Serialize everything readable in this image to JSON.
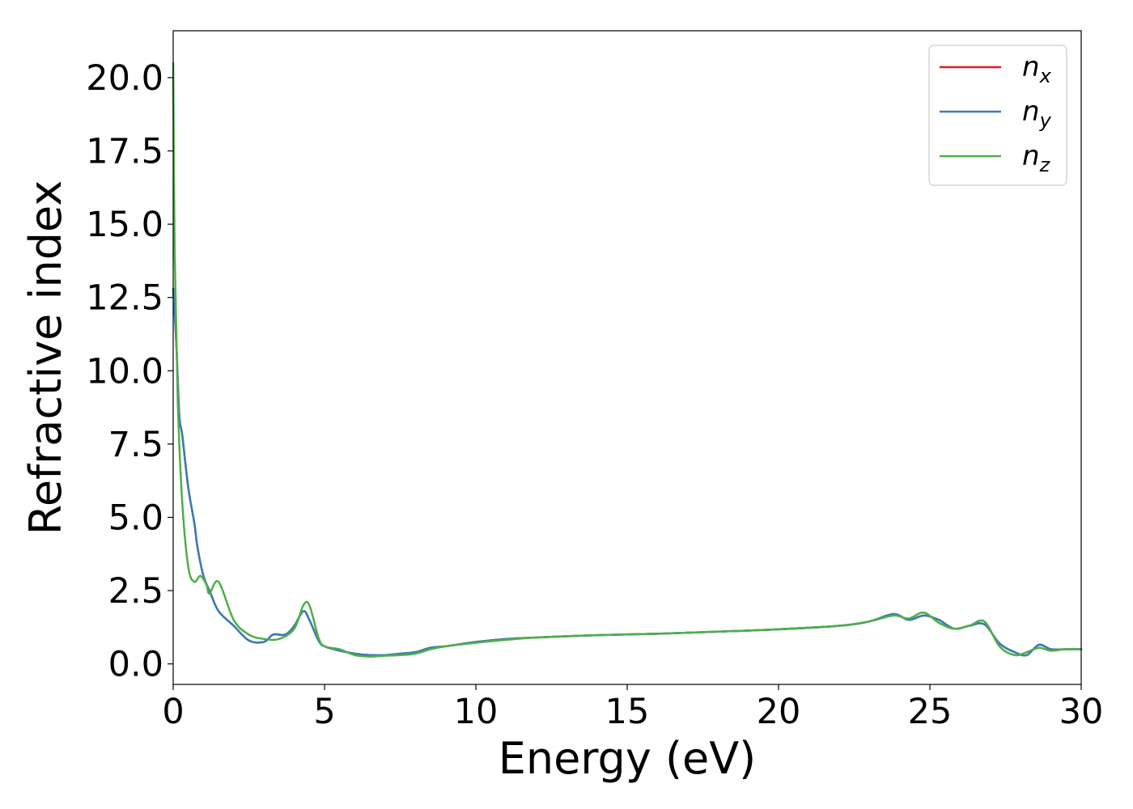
{
  "chart_data": {
    "type": "line",
    "title": "",
    "xlabel": "Energy (eV)",
    "ylabel": "Refractive index",
    "xlim": [
      0,
      30
    ],
    "ylim": [
      -0.7,
      21.6
    ],
    "xticks": [
      0,
      5,
      10,
      15,
      20,
      25,
      30
    ],
    "xtick_labels": [
      "0",
      "5",
      "10",
      "15",
      "20",
      "25",
      "30"
    ],
    "yticks": [
      0,
      2.5,
      5,
      7.5,
      10,
      12.5,
      15,
      17.5,
      20
    ],
    "ytick_labels": [
      "0.0",
      "2.5",
      "5.0",
      "7.5",
      "10.0",
      "12.5",
      "15.0",
      "17.5",
      "20.0"
    ],
    "grid": false,
    "legend_position": "top-right",
    "series": [
      {
        "name": "n_x",
        "label_base": "n",
        "label_sub": "x",
        "color": "#e41a1c",
        "x": [
          0,
          0.1,
          0.2,
          0.3,
          0.5,
          0.7,
          0.8,
          1.0,
          1.2,
          1.5,
          2.0,
          2.5,
          3.0,
          3.3,
          3.7,
          4.0,
          4.3,
          4.5,
          4.8,
          5.0,
          5.5,
          6.0,
          6.5,
          7.0,
          7.5,
          8.0,
          8.5,
          9.0,
          10,
          11,
          12,
          14,
          16,
          18,
          20,
          22,
          23,
          23.8,
          24.3,
          24.8,
          25.3,
          25.8,
          26.3,
          26.8,
          27.3,
          27.8,
          28.2,
          28.6,
          29.0,
          29.5,
          30
        ],
        "y": [
          12.8,
          11.0,
          8.5,
          7.8,
          6.0,
          4.8,
          4.0,
          3.0,
          2.5,
          1.8,
          1.3,
          0.8,
          0.75,
          1.0,
          1.0,
          1.3,
          1.8,
          1.5,
          0.8,
          0.6,
          0.45,
          0.35,
          0.3,
          0.3,
          0.35,
          0.4,
          0.55,
          0.6,
          0.75,
          0.85,
          0.9,
          0.98,
          1.03,
          1.1,
          1.18,
          1.3,
          1.45,
          1.7,
          1.5,
          1.65,
          1.5,
          1.2,
          1.3,
          1.35,
          0.7,
          0.4,
          0.3,
          0.65,
          0.5,
          0.5,
          0.5
        ]
      },
      {
        "name": "n_y",
        "label_base": "n",
        "label_sub": "y",
        "color": "#377eb8",
        "x": [
          0,
          0.1,
          0.2,
          0.3,
          0.5,
          0.7,
          0.8,
          1.0,
          1.2,
          1.5,
          2.0,
          2.5,
          3.0,
          3.3,
          3.7,
          4.0,
          4.3,
          4.5,
          4.8,
          5.0,
          5.5,
          6.0,
          6.5,
          7.0,
          7.5,
          8.0,
          8.5,
          9.0,
          10,
          11,
          12,
          14,
          16,
          18,
          20,
          22,
          23,
          23.8,
          24.3,
          24.8,
          25.3,
          25.8,
          26.3,
          26.8,
          27.3,
          27.8,
          28.2,
          28.6,
          29.0,
          29.5,
          30
        ],
        "y": [
          12.8,
          11.0,
          8.5,
          7.8,
          6.0,
          4.8,
          4.0,
          3.0,
          2.5,
          1.8,
          1.3,
          0.8,
          0.75,
          1.0,
          1.0,
          1.3,
          1.8,
          1.5,
          0.8,
          0.6,
          0.45,
          0.35,
          0.3,
          0.3,
          0.35,
          0.4,
          0.55,
          0.6,
          0.75,
          0.85,
          0.9,
          0.98,
          1.03,
          1.1,
          1.18,
          1.3,
          1.45,
          1.7,
          1.5,
          1.65,
          1.5,
          1.2,
          1.3,
          1.35,
          0.7,
          0.4,
          0.3,
          0.65,
          0.5,
          0.5,
          0.5
        ]
      },
      {
        "name": "n_z",
        "label_base": "n",
        "label_sub": "z",
        "color": "#4daf4a",
        "x": [
          0,
          0.05,
          0.15,
          0.3,
          0.5,
          0.7,
          0.9,
          1.1,
          1.2,
          1.5,
          2.0,
          2.5,
          3.0,
          3.5,
          4.0,
          4.3,
          4.5,
          4.8,
          5.0,
          5.5,
          6.0,
          6.5,
          7.0,
          7.5,
          8.0,
          8.5,
          9.0,
          10,
          11,
          12,
          14,
          16,
          18,
          20,
          22,
          23,
          23.8,
          24.3,
          24.8,
          25.3,
          25.8,
          26.3,
          26.8,
          27.3,
          27.8,
          28.2,
          28.6,
          29.0,
          29.5,
          30
        ],
        "y": [
          20.5,
          14.0,
          9.0,
          5.5,
          3.3,
          2.8,
          3.0,
          2.7,
          2.4,
          2.8,
          1.5,
          1.0,
          0.85,
          0.85,
          1.2,
          2.0,
          2.0,
          0.9,
          0.6,
          0.5,
          0.3,
          0.25,
          0.28,
          0.3,
          0.35,
          0.5,
          0.6,
          0.72,
          0.82,
          0.9,
          0.98,
          1.03,
          1.1,
          1.18,
          1.3,
          1.45,
          1.65,
          1.55,
          1.75,
          1.4,
          1.2,
          1.3,
          1.45,
          0.6,
          0.3,
          0.4,
          0.55,
          0.45,
          0.5,
          0.5
        ]
      }
    ]
  }
}
